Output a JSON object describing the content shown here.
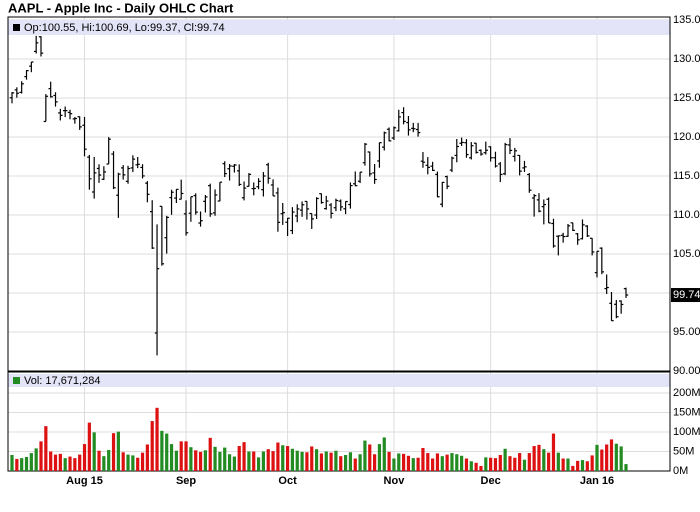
{
  "chart_data": {
    "type": "ohlc",
    "title": "AAPL - Apple Inc - Daily OHLC Chart",
    "legend_text": "Op:100.55, Hi:100.69, Lo:99.37, Cl:99.74",
    "categories": [
      null,
      null,
      null,
      null,
      null,
      null,
      null,
      null,
      null,
      null,
      null,
      null,
      null,
      null,
      null,
      "Aug 15",
      null,
      null,
      null,
      null,
      null,
      null,
      null,
      null,
      null,
      null,
      null,
      null,
      null,
      null,
      null,
      null,
      null,
      null,
      null,
      null,
      "Sep",
      null,
      null,
      null,
      null,
      null,
      null,
      null,
      null,
      null,
      null,
      null,
      null,
      null,
      null,
      null,
      null,
      null,
      null,
      null,
      null,
      "Oct",
      null,
      null,
      null,
      null,
      null,
      null,
      null,
      null,
      null,
      null,
      null,
      null,
      null,
      null,
      null,
      null,
      null,
      null,
      null,
      null,
      null,
      "Nov",
      null,
      null,
      null,
      null,
      null,
      null,
      null,
      null,
      null,
      null,
      null,
      null,
      null,
      null,
      null,
      null,
      null,
      null,
      null,
      "Dec",
      null,
      null,
      null,
      null,
      null,
      null,
      null,
      null,
      null,
      null,
      null,
      null,
      null,
      null,
      null,
      null,
      null,
      null,
      null,
      null,
      null,
      "Jan 16",
      null,
      null,
      null,
      null,
      null,
      null
    ],
    "open": [
      125.03,
      126.04,
      125.72,
      127.74,
      129.08,
      130.97,
      132.85,
      121.99,
      126.2,
      125.32,
      123.09,
      123.38,
      123.15,
      122.32,
      122.6,
      121.5,
      117.42,
      112.95,
      115.97,
      114.58,
      116.53,
      117.81,
      112.53,
      116.04,
      114.32,
      116.04,
      116.43,
      116.1,
      114.08,
      110.43,
      94.87,
      111.11,
      107.09,
      112.23,
      112.17,
      112.03,
      110.15,
      110.23,
      112.49,
      108.97,
      111.75,
      113.76,
      110.27,
      111.79,
      116.58,
      115.93,
      116.25,
      115.66,
      112.21,
      113.67,
      113.38,
      113.63,
      113.25,
      116.44,
      113.85,
      112.83,
      110.17,
      109.07,
      108.01,
      109.88,
      110.63,
      111.74,
      110.19,
      110.0,
      112.73,
      110.82,
      111.29,
      110.93,
      111.78,
      110.8,
      111.34,
      114.0,
      114.33,
      116.7,
      118.08,
      115.4,
      116.93,
      118.7,
      120.99,
      119.87,
      120.79,
      123.13,
      121.85,
      121.11,
      120.96,
      116.9,
      116.37,
      116.26,
      115.2,
      111.38,
      114.92,
      115.76,
      117.64,
      119.2,
      119.27,
      117.33,
      119.21,
      118.29,
      117.99,
      118.75,
      117.34,
      116.55,
      115.29,
      118.98,
      117.52,
      117.64,
      116.04,
      115.19,
      112.18,
      111.94,
      111.07,
      112.02,
      108.91,
      107.28,
      107.4,
      107.27,
      109.0,
      107.59,
      106.96,
      108.58,
      107.01,
      102.61,
      105.75,
      100.56,
      98.68,
      98.55,
      98.97,
      100.55
    ],
    "high": [
      125.76,
      126.37,
      127.15,
      128.57,
      129.62,
      132.97,
      132.92,
      125.5,
      127.09,
      125.74,
      123.61,
      123.91,
      123.5,
      122.57,
      122.64,
      122.57,
      117.7,
      117.44,
      116.5,
      116.25,
      119.99,
      118.18,
      115.42,
      116.4,
      116.31,
      117.65,
      117.44,
      116.52,
      114.35,
      111.9,
      108.8,
      111.11,
      109.89,
      113.24,
      113.31,
      114.53,
      111.88,
      112.34,
      112.78,
      110.45,
      112.56,
      114.02,
      113.28,
      114.21,
      116.89,
      116.53,
      116.54,
      116.49,
      114.3,
      115.37,
      114.18,
      114.72,
      115.5,
      116.69,
      114.57,
      113.51,
      111.54,
      109.62,
      111.01,
      111.37,
      111.74,
      111.77,
      110.19,
      112.28,
      112.75,
      112.45,
      111.52,
      112.1,
      112.0,
      111.75,
      114.17,
      115.58,
      115.5,
      119.23,
      118.13,
      116.54,
      119.3,
      120.69,
      121.22,
      121.36,
      123.49,
      123.82,
      122.69,
      121.81,
      121.81,
      118.07,
      117.42,
      116.82,
      115.57,
      114.24,
      115.05,
      117.49,
      119.75,
      119.92,
      119.73,
      119.35,
      119.23,
      118.41,
      119.41,
      118.81,
      118.11,
      116.79,
      119.25,
      119.86,
      118.6,
      117.69,
      116.94,
      115.39,
      112.68,
      112.8,
      111.99,
      112.25,
      109.52,
      107.37,
      107.72,
      108.85,
      109.0,
      107.69,
      109.43,
      108.7,
      107.03,
      105.37,
      105.85,
      102.37,
      100.13,
      99.11,
      99.06,
      100.69
    ],
    "low": [
      124.32,
      125.04,
      125.58,
      127.35,
      128.31,
      130.7,
      130.32,
      121.99,
      125.06,
      123.9,
      122.12,
      122.55,
      122.27,
      121.71,
      120.91,
      117.52,
      113.25,
      112.1,
      114.12,
      114.5,
      116.53,
      113.33,
      109.63,
      114.54,
      114.01,
      115.5,
      116.01,
      114.68,
      111.63,
      105.65,
      92.0,
      103.5,
      105.05,
      110.02,
      111.54,
      112.0,
      107.36,
      109.13,
      110.04,
      108.51,
      110.32,
      109.77,
      109.9,
      111.76,
      114.86,
      114.42,
      115.44,
      113.72,
      111.87,
      113.66,
      112.52,
      113.3,
      112.37,
      114.02,
      112.44,
      107.86,
      108.73,
      107.31,
      107.55,
      109.07,
      109.77,
      109.41,
      108.21,
      109.49,
      111.44,
      110.68,
      109.56,
      110.49,
      110.53,
      110.11,
      110.82,
      113.7,
      114.1,
      116.33,
      114.92,
      113.99,
      116.06,
      118.27,
      119.45,
      119.61,
      120.7,
      121.62,
      120.18,
      120.62,
      120.05,
      116.06,
      115.21,
      115.65,
      112.27,
      111.0,
      113.32,
      115.5,
      116.76,
      118.85,
      117.34,
      117.12,
      117.87,
      117.6,
      117.75,
      116.86,
      116.08,
      114.22,
      115.11,
      117.81,
      116.86,
      115.08,
      115.51,
      112.85,
      109.79,
      110.35,
      108.8,
      108.98,
      105.81,
      104.82,
      106.45,
      107.2,
      107.95,
      106.18,
      106.86,
      107.18,
      104.82,
      102.0,
      102.41,
      99.87,
      96.43,
      96.76,
      97.34,
      99.37
    ],
    "close": [
      125.66,
      125.61,
      126.82,
      128.51,
      129.62,
      132.07,
      130.75,
      125.22,
      125.16,
      124.5,
      122.77,
      123.38,
      122.99,
      122.37,
      121.3,
      118.44,
      114.64,
      115.4,
      115.13,
      115.52,
      119.72,
      113.49,
      115.24,
      115.15,
      115.96,
      117.16,
      116.5,
      115.01,
      112.65,
      105.76,
      103.12,
      103.74,
      109.69,
      112.92,
      113.29,
      112.76,
      107.72,
      112.34,
      110.37,
      109.27,
      112.31,
      110.15,
      112.57,
      114.21,
      115.31,
      116.28,
      116.41,
      113.92,
      113.45,
      115.21,
      113.4,
      114.32,
      115.0,
      114.71,
      112.44,
      109.06,
      110.3,
      109.58,
      110.38,
      110.78,
      111.31,
      110.78,
      109.5,
      112.12,
      111.6,
      111.79,
      110.21,
      111.86,
      111.04,
      111.73,
      113.77,
      113.76,
      115.5,
      119.08,
      115.28,
      114.55,
      119.27,
      120.53,
      119.5,
      121.18,
      122.57,
      122.0,
      120.92,
      121.06,
      120.57,
      116.77,
      116.11,
      115.72,
      112.34,
      114.18,
      113.69,
      117.29,
      118.78,
      119.3,
      117.75,
      118.88,
      118.03,
      117.81,
      118.3,
      117.34,
      116.28,
      115.2,
      119.03,
      118.28,
      118.23,
      115.62,
      116.17,
      113.18,
      112.48,
      110.49,
      111.34,
      108.98,
      106.03,
      107.33,
      107.23,
      108.61,
      108.03,
      106.82,
      108.74,
      107.32,
      105.26,
      105.35,
      102.71,
      100.7,
      96.45,
      96.96,
      98.53,
      99.74
    ],
    "ylim": [
      90,
      135
    ],
    "yticks": [
      {
        "value": 90,
        "label": "90.00"
      },
      {
        "value": 95,
        "label": "95.00"
      },
      {
        "value": 100,
        "label": "100.00"
      },
      {
        "value": 105,
        "label": "105.00"
      },
      {
        "value": 110,
        "label": "110.00"
      },
      {
        "value": 115,
        "label": "115.00"
      },
      {
        "value": 120,
        "label": "120.00"
      },
      {
        "value": 125,
        "label": "125.00"
      },
      {
        "value": 130,
        "label": "130.00"
      },
      {
        "value": 135,
        "label": "135.00"
      }
    ],
    "grid": true,
    "bar_color": "#000000",
    "volume": {
      "legend_text": "Vol: 17,671,284",
      "values": [
        41,
        31,
        33,
        36,
        46,
        58,
        76,
        115,
        50,
        42,
        44,
        33,
        37,
        33,
        42,
        69,
        124,
        99,
        52,
        38,
        54,
        97,
        101,
        48,
        42,
        40,
        34,
        47,
        68,
        128,
        162,
        103,
        96,
        69,
        52,
        76,
        76,
        61,
        53,
        49,
        53,
        85,
        62,
        49,
        60,
        43,
        37,
        64,
        74,
        50,
        50,
        35,
        50,
        56,
        51,
        73,
        66,
        64,
        57,
        52,
        49,
        48,
        63,
        56,
        45,
        50,
        47,
        52,
        38,
        41,
        48,
        32,
        43,
        78,
        68,
        43,
        69,
        86,
        49,
        32,
        45,
        44,
        39,
        33,
        34,
        59,
        46,
        32,
        45,
        38,
        42,
        46,
        43,
        39,
        32,
        25,
        21,
        13,
        35,
        34,
        33,
        41,
        57,
        38,
        34,
        46,
        29,
        46,
        64,
        67,
        56,
        47,
        96,
        47,
        32,
        32,
        13,
        26,
        28,
        25,
        40,
        67,
        55,
        68,
        81,
        70,
        63,
        17.671284
      ],
      "ylim": [
        0,
        250
      ],
      "yticks": [
        {
          "value": 0,
          "label": "0M"
        },
        {
          "value": 50,
          "label": "50M"
        },
        {
          "value": 100,
          "label": "100M"
        },
        {
          "value": 150,
          "label": "150M"
        },
        {
          "value": 200,
          "label": "200M"
        }
      ],
      "up_color": "#228b22",
      "down_color": "#dd1111"
    }
  }
}
